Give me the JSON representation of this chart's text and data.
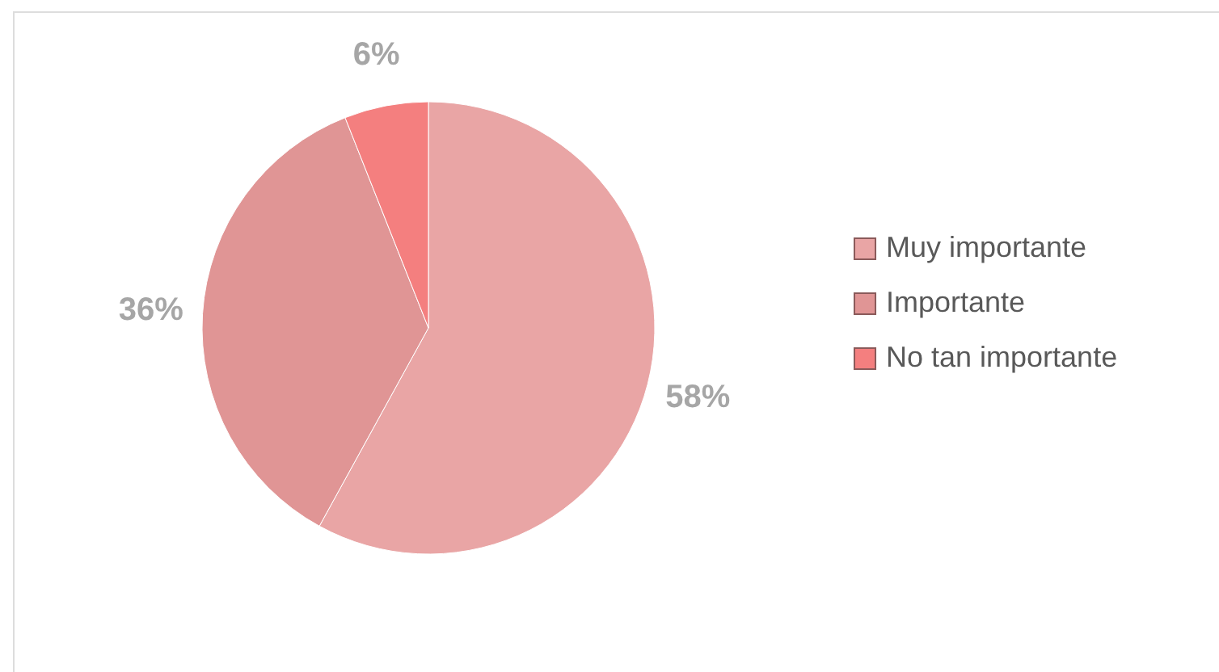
{
  "chart_data": {
    "type": "pie",
    "categories": [
      "Muy importante",
      "Importante",
      "No tan importante"
    ],
    "values": [
      58,
      36,
      6
    ],
    "colors": [
      "#e9a5a5",
      "#e09595",
      "#f47f7f"
    ],
    "value_labels": [
      "58%",
      "36%",
      "6%"
    ],
    "legend": "right"
  }
}
